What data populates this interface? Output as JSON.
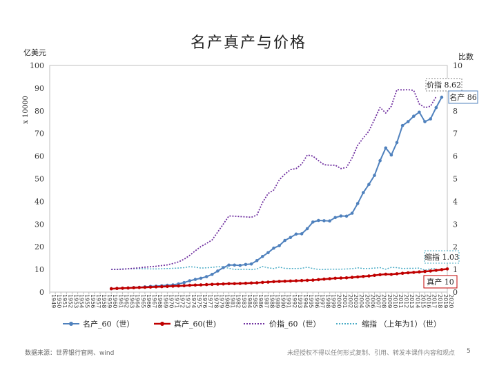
{
  "title": "名产真产与价格",
  "left_axis_label": "亿美元",
  "left_axis_multiplier": "x 10000",
  "right_axis_label": "比数",
  "footer": {
    "source": "数据来源：世界银行官网、wind",
    "disclaimer": "未经授权不得以任何形式复制、引用、转发本课件内容和观点",
    "page": "5"
  },
  "annotations": {
    "price_index": "价指 8.62",
    "nominal": "名产 86",
    "deflator": "缩指 1.03",
    "real": "真产 10"
  },
  "colors": {
    "nominal": "#4f81bd",
    "real": "#c00000",
    "price": "#7030a0",
    "deflator": "#4bacc6",
    "axis": "#bfbfbf"
  },
  "chart_data": {
    "type": "line",
    "title": "名产真产与价格",
    "ylabel_left": "亿美元",
    "ylabel_right": "比数",
    "ylim_left": [
      0,
      100
    ],
    "ylim_right": [
      0,
      10
    ],
    "yticks_left": [
      0,
      10,
      20,
      30,
      40,
      50,
      60,
      70,
      80,
      90,
      100
    ],
    "yticks_right": [
      0,
      1,
      2,
      3,
      4,
      5,
      6,
      7,
      8,
      9,
      10
    ],
    "x_start": 1949,
    "x_end": 2020,
    "x_tick_labels": [
      "1949",
      "1950",
      "1951",
      "1952",
      "1953",
      "1954",
      "1955",
      "1956",
      "1957",
      "1958",
      "1959",
      "1960",
      "1961",
      "1962",
      "1963",
      "1964",
      "1965",
      "1966",
      "1967",
      "1968",
      "1969",
      "1970",
      "1971",
      "1972",
      "1973",
      "1974",
      "1975",
      "1976",
      "1977",
      "1978",
      "1979",
      "1980",
      "1981",
      "1982",
      "1983",
      "1984",
      "1985",
      "1986",
      "1987",
      "1988",
      "1989",
      "1990",
      "1991",
      "1992",
      "1993",
      "1994",
      "1995",
      "1996",
      "1997",
      "1998",
      "1999",
      "2000",
      "2001",
      "2002",
      "2003",
      "2004",
      "2005",
      "2006",
      "2007",
      "2008",
      "2009",
      "2010",
      "2011",
      "2012",
      "2013",
      "2014",
      "2015",
      "2016",
      "2017",
      "2018",
      "2019",
      "2020"
    ],
    "legend_position": "bottom",
    "series": [
      {
        "name": "名产_60（世）",
        "axis": "left",
        "style": "solid-markers",
        "x_start": 1960,
        "values": [
          1.5,
          1.6,
          1.7,
          1.8,
          2.0,
          2.1,
          2.3,
          2.5,
          2.6,
          2.8,
          3.0,
          3.2,
          3.6,
          4.2,
          5.0,
          5.6,
          6.1,
          6.8,
          7.8,
          9.3,
          10.8,
          11.9,
          11.9,
          11.8,
          12.2,
          12.4,
          13.9,
          15.7,
          17.4,
          19.4,
          20.5,
          22.8,
          24.1,
          25.6,
          25.7,
          28.0,
          30.9,
          31.6,
          31.5,
          31.4,
          32.9,
          33.6,
          33.5,
          34.8,
          39.1,
          43.9,
          47.5,
          51.5,
          58.0,
          63.6,
          60.5,
          66.0,
          73.5,
          75.2,
          77.6,
          79.4,
          75.2,
          76.4,
          81.4,
          86.0
        ]
      },
      {
        "name": "真产_60(世)",
        "axis": "left",
        "style": "solid-markers",
        "x_start": 1960,
        "values": [
          1.5,
          1.6,
          1.7,
          1.8,
          1.9,
          2.0,
          2.1,
          2.2,
          2.3,
          2.4,
          2.5,
          2.6,
          2.7,
          2.8,
          3.0,
          3.1,
          3.2,
          3.3,
          3.4,
          3.5,
          3.6,
          3.7,
          3.7,
          3.8,
          3.9,
          4.0,
          4.1,
          4.3,
          4.4,
          4.6,
          4.7,
          4.8,
          4.9,
          5.0,
          5.1,
          5.2,
          5.3,
          5.5,
          5.7,
          5.9,
          6.1,
          6.2,
          6.3,
          6.5,
          6.7,
          6.9,
          7.1,
          7.4,
          7.7,
          7.9,
          7.8,
          8.1,
          8.3,
          8.5,
          8.7,
          8.9,
          9.1,
          9.3,
          9.6,
          9.9,
          10.2
        ]
      },
      {
        "name": "价指_60（世）",
        "axis": "right",
        "style": "dotted",
        "x_start": 1960,
        "values": [
          1.0,
          1.0,
          1.01,
          1.03,
          1.05,
          1.07,
          1.1,
          1.12,
          1.14,
          1.17,
          1.2,
          1.26,
          1.33,
          1.45,
          1.62,
          1.82,
          2.01,
          2.15,
          2.3,
          2.65,
          3.0,
          3.36,
          3.35,
          3.33,
          3.32,
          3.3,
          3.4,
          3.95,
          4.35,
          4.5,
          4.95,
          5.2,
          5.4,
          5.45,
          5.65,
          6.05,
          6.0,
          5.8,
          5.62,
          5.6,
          5.6,
          5.45,
          5.5,
          5.92,
          6.48,
          6.8,
          7.1,
          7.62,
          8.15,
          7.9,
          8.2,
          8.93,
          8.92,
          8.93,
          8.9,
          8.3,
          8.14,
          8.2,
          8.62
        ]
      },
      {
        "name": "缩指 （上年为1）（世）",
        "axis": "right",
        "style": "dotted",
        "x_start": 1960,
        "values": [
          1.0,
          1.01,
          1.02,
          1.02,
          1.03,
          1.03,
          1.03,
          1.02,
          1.02,
          1.03,
          1.04,
          1.05,
          1.06,
          1.08,
          1.12,
          1.1,
          1.06,
          1.07,
          1.09,
          1.12,
          1.12,
          1.05,
          1.0,
          1.0,
          1.01,
          0.99,
          1.02,
          1.13,
          1.07,
          1.04,
          1.1,
          1.05,
          1.04,
          1.04,
          1.05,
          1.1,
          1.04,
          1.0,
          1.0,
          1.01,
          1.01,
          1.01,
          1.02,
          1.03,
          1.07,
          1.04,
          1.04,
          1.06,
          1.08,
          1.01,
          1.09,
          1.08,
          1.04,
          1.05,
          1.05,
          1.06,
          0.96,
          1.03,
          1.03
        ]
      }
    ]
  }
}
